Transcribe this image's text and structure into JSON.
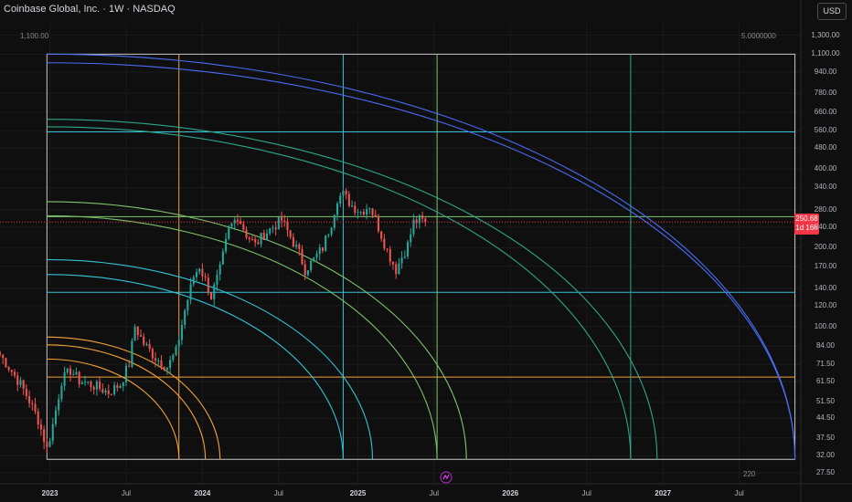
{
  "header": {
    "title": "Coinbase Global, Inc. · 1W · NASDAQ",
    "currency_button": "USD"
  },
  "price_badge": {
    "price": "250.68",
    "countdown": "1d 16h"
  },
  "corner_labels": {
    "top_left": "1,100.00",
    "top_right": "5.0000000",
    "bottom_right": "220"
  },
  "icons": {
    "watermark": "tradingview-logo-icon"
  },
  "colors": {
    "background": "#0f0f0f",
    "up": "#26a69a",
    "down": "#ef5350",
    "orange": "#f2a13a",
    "cyan": "#33c3d6",
    "teal": "#2ea68c",
    "green": "#7ec46a",
    "blue": "#4a6cf7",
    "box": "#c8c8c8",
    "price_line": "#f23645"
  },
  "chart_data": {
    "type": "candlestick",
    "scale": "log",
    "ylim": [
      25,
      1450
    ],
    "xlim": [
      "2022-09-05",
      "2027-11-29"
    ],
    "y_ticks": [
      "1,300.00",
      "1,100.00",
      "940.00",
      "780.00",
      "660.00",
      "560.00",
      "480.00",
      "400.00",
      "340.00",
      "280.00",
      "240.00",
      "200.00",
      "170.00",
      "140.00",
      "120.00",
      "100.00",
      "84.00",
      "71.50",
      "61.50",
      "51.50",
      "44.50",
      "37.50",
      "32.00",
      "27.50"
    ],
    "x_ticks": [
      {
        "label": "2023",
        "date": "2023-01-02",
        "bold": true
      },
      {
        "label": "Jul",
        "date": "2023-07-03",
        "bold": false
      },
      {
        "label": "2024",
        "date": "2024-01-01",
        "bold": true
      },
      {
        "label": "Jul",
        "date": "2024-07-01",
        "bold": false
      },
      {
        "label": "2025",
        "date": "2025-01-06",
        "bold": true
      },
      {
        "label": "Jul",
        "date": "2025-07-07",
        "bold": false
      },
      {
        "label": "2026",
        "date": "2026-01-05",
        "bold": true
      },
      {
        "label": "Jul",
        "date": "2026-07-06",
        "bold": false
      },
      {
        "label": "2027",
        "date": "2027-01-04",
        "bold": true
      },
      {
        "label": "Jul",
        "date": "2027-07-05",
        "bold": false
      }
    ],
    "price_anchors": [
      [
        "2022-09-05",
        78
      ],
      [
        "2022-09-26",
        70
      ],
      [
        "2022-10-24",
        60
      ],
      [
        "2022-11-14",
        52
      ],
      [
        "2022-12-05",
        44
      ],
      [
        "2022-12-26",
        34
      ],
      [
        "2023-01-09",
        42
      ],
      [
        "2023-01-30",
        62
      ],
      [
        "2023-02-20",
        68
      ],
      [
        "2023-03-13",
        62
      ],
      [
        "2023-04-10",
        60
      ],
      [
        "2023-05-22",
        56
      ],
      [
        "2023-06-19",
        60
      ],
      [
        "2023-07-10",
        72
      ],
      [
        "2023-07-24",
        100
      ],
      [
        "2023-08-14",
        86
      ],
      [
        "2023-09-11",
        76
      ],
      [
        "2023-10-09",
        70
      ],
      [
        "2023-10-30",
        80
      ],
      [
        "2023-11-20",
        115
      ],
      [
        "2023-12-11",
        155
      ],
      [
        "2023-12-25",
        170
      ],
      [
        "2024-01-08",
        150
      ],
      [
        "2024-01-22",
        130
      ],
      [
        "2024-02-12",
        165
      ],
      [
        "2024-03-04",
        235
      ],
      [
        "2024-03-25",
        265
      ],
      [
        "2024-04-15",
        225
      ],
      [
        "2024-05-06",
        205
      ],
      [
        "2024-05-27",
        225
      ],
      [
        "2024-06-17",
        240
      ],
      [
        "2024-07-08",
        255
      ],
      [
        "2024-07-29",
        220
      ],
      [
        "2024-08-19",
        190
      ],
      [
        "2024-09-02",
        165
      ],
      [
        "2024-09-23",
        180
      ],
      [
        "2024-10-14",
        200
      ],
      [
        "2024-11-04",
        250
      ],
      [
        "2024-11-18",
        310
      ],
      [
        "2024-12-02",
        320
      ],
      [
        "2024-12-23",
        290
      ],
      [
        "2025-01-13",
        275
      ],
      [
        "2025-02-03",
        290
      ],
      [
        "2025-02-24",
        240
      ],
      [
        "2025-03-17",
        195
      ],
      [
        "2025-04-07",
        165
      ],
      [
        "2025-04-21",
        185
      ],
      [
        "2025-05-05",
        205
      ],
      [
        "2025-05-19",
        250
      ],
      [
        "2025-06-02",
        255
      ],
      [
        "2025-06-16",
        250.68
      ]
    ],
    "last_close": 250.68,
    "rectangle": {
      "start": "2022-12-26",
      "end": "2027-11-15",
      "top": 1100,
      "bottom": 31
    },
    "horizontal_levels": [
      {
        "price": 555,
        "color": "#33c3d6"
      },
      {
        "price": 263,
        "color": "#7ec46a"
      },
      {
        "price": 135,
        "color": "#33c3d6"
      },
      {
        "price": 64,
        "color": "#f2a13a"
      }
    ],
    "vertical_levels": [
      {
        "date": "2023-11-06",
        "color": "#f2a13a"
      },
      {
        "date": "2024-12-02",
        "color": "#33c3d6"
      },
      {
        "date": "2025-07-14",
        "color": "#7ec46a"
      },
      {
        "date": "2026-10-19",
        "color": "#2ea68c"
      }
    ],
    "arcs": [
      {
        "end": "2023-11-06",
        "top": 75,
        "color": "#f2a13a"
      },
      {
        "end": "2024-01-08",
        "top": 85,
        "color": "#f2a13a"
      },
      {
        "end": "2024-02-12",
        "top": 91,
        "color": "#f2a13a"
      },
      {
        "end": "2024-12-02",
        "top": 158,
        "color": "#33c3d6"
      },
      {
        "end": "2025-02-10",
        "top": 180,
        "color": "#33c3d6"
      },
      {
        "end": "2025-07-14",
        "top": 265,
        "color": "#7ec46a"
      },
      {
        "end": "2025-09-22",
        "top": 300,
        "color": "#7ec46a"
      },
      {
        "end": "2026-10-19",
        "top": 580,
        "color": "#2ea68c"
      },
      {
        "end": "2026-12-21",
        "top": 620,
        "color": "#2ea68c"
      },
      {
        "end": "2027-11-15",
        "top": 1100,
        "color": "#4a6cf7"
      },
      {
        "end": "2027-11-15",
        "top": 1020,
        "color": "#4a6cf7"
      }
    ]
  }
}
